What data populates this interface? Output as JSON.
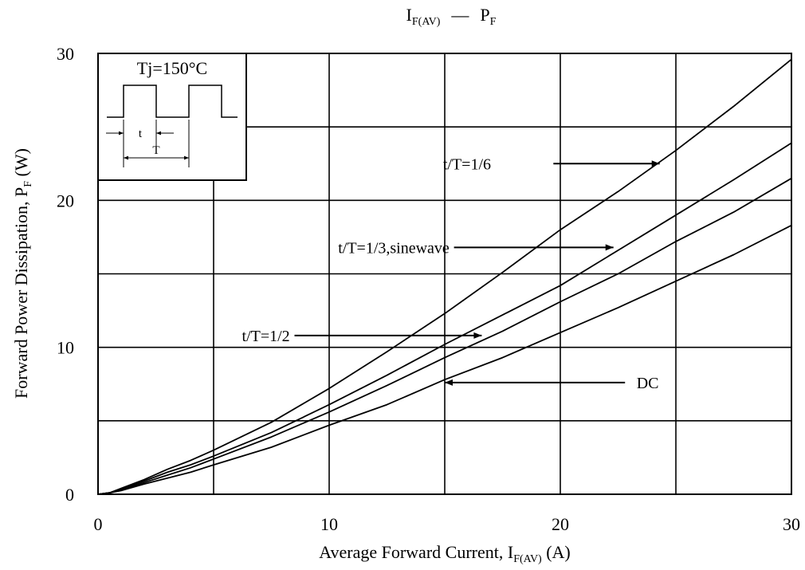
{
  "chart_data": {
    "type": "line",
    "title": {
      "main": "I",
      "main_sub": "F(AV)",
      "dash": "—",
      "second": "P",
      "second_sub": "F"
    },
    "xlabel": {
      "text": "Average Forward Current, I",
      "sub": "F(AV)",
      "suffix": " (A)"
    },
    "ylabel": {
      "text": "Forward Power Dissipation, P",
      "sub": "F",
      "suffix": " (W)"
    },
    "xlim": [
      0,
      30
    ],
    "ylim": [
      0,
      30
    ],
    "xticks": [
      {
        "value": 0,
        "label": "0"
      },
      {
        "value": 10,
        "label": "10"
      },
      {
        "value": 20,
        "label": "20"
      },
      {
        "value": 30,
        "label": "30"
      }
    ],
    "yticks": [
      {
        "value": 0,
        "label": "0"
      },
      {
        "value": 10,
        "label": "10"
      },
      {
        "value": 20,
        "label": "20"
      },
      {
        "value": 30,
        "label": "30"
      }
    ],
    "grid_x": [
      5,
      10,
      15,
      20,
      25
    ],
    "grid_y": [
      5,
      10,
      15,
      20,
      25
    ],
    "grid": true,
    "series": [
      {
        "key": "sixth",
        "x": [
          0,
          0.5,
          1,
          2,
          3,
          4,
          5,
          7.5,
          10,
          12.5,
          15,
          17.5,
          20,
          22.5,
          25,
          27.5,
          30
        ],
        "y": [
          0,
          0.1,
          0.4,
          1.0,
          1.7,
          2.3,
          3.0,
          4.9,
          7.2,
          9.7,
          12.3,
          15.1,
          18.0,
          20.6,
          23.4,
          26.4,
          29.6
        ]
      },
      {
        "key": "third",
        "x": [
          0,
          0.5,
          1,
          2,
          3,
          4,
          5,
          7.5,
          10,
          12.5,
          15,
          17.5,
          20,
          22.5,
          25,
          27.5,
          30
        ],
        "y": [
          0,
          0.1,
          0.35,
          0.9,
          1.5,
          2.0,
          2.6,
          4.2,
          6.1,
          8.1,
          10.2,
          12.2,
          14.2,
          16.6,
          19.0,
          21.4,
          23.9
        ]
      },
      {
        "key": "half",
        "x": [
          0,
          0.5,
          1,
          2,
          3,
          4,
          5,
          7.5,
          10,
          12.5,
          15,
          17.5,
          20,
          22.5,
          25,
          27.5,
          30
        ],
        "y": [
          0,
          0.1,
          0.3,
          0.8,
          1.3,
          1.8,
          2.4,
          3.9,
          5.6,
          7.4,
          9.3,
          11.1,
          13.1,
          15.0,
          17.2,
          19.2,
          21.5
        ]
      },
      {
        "key": "dc",
        "x": [
          0,
          0.5,
          1,
          2,
          3,
          4,
          5,
          7.5,
          10,
          12.5,
          15,
          17.5,
          20,
          22.5,
          25,
          27.5,
          30
        ],
        "y": [
          0,
          0.1,
          0.25,
          0.7,
          1.1,
          1.5,
          2.0,
          3.2,
          4.7,
          6.1,
          7.8,
          9.3,
          11.0,
          12.7,
          14.5,
          16.3,
          18.3
        ]
      }
    ],
    "annotations": [
      {
        "key": "sixth",
        "label": "t/T=1/6",
        "text_at": [
          17.0,
          22.5
        ],
        "arrow_from": [
          19.7,
          22.5
        ],
        "arrow_to": [
          24.3,
          22.5
        ],
        "anchor": "end"
      },
      {
        "key": "third",
        "label": "t/T=1/3,sinewave",
        "text_at": [
          15.2,
          16.8
        ],
        "arrow_from": [
          15.4,
          16.8
        ],
        "arrow_to": [
          22.3,
          16.8
        ],
        "anchor": "end"
      },
      {
        "key": "half",
        "label": "t/T=1/2",
        "text_at": [
          8.3,
          10.8
        ],
        "arrow_from": [
          8.5,
          10.8
        ],
        "arrow_to": [
          16.6,
          10.8
        ],
        "anchor": "end"
      },
      {
        "key": "dc",
        "label": "DC",
        "text_at": [
          23.3,
          7.6
        ],
        "arrow_from": [
          22.8,
          7.6
        ],
        "arrow_to": [
          15.0,
          7.6
        ],
        "anchor": "start"
      }
    ],
    "inset": {
      "title": "Tj=150°C",
      "t_label": "t",
      "T_label": "T"
    }
  }
}
